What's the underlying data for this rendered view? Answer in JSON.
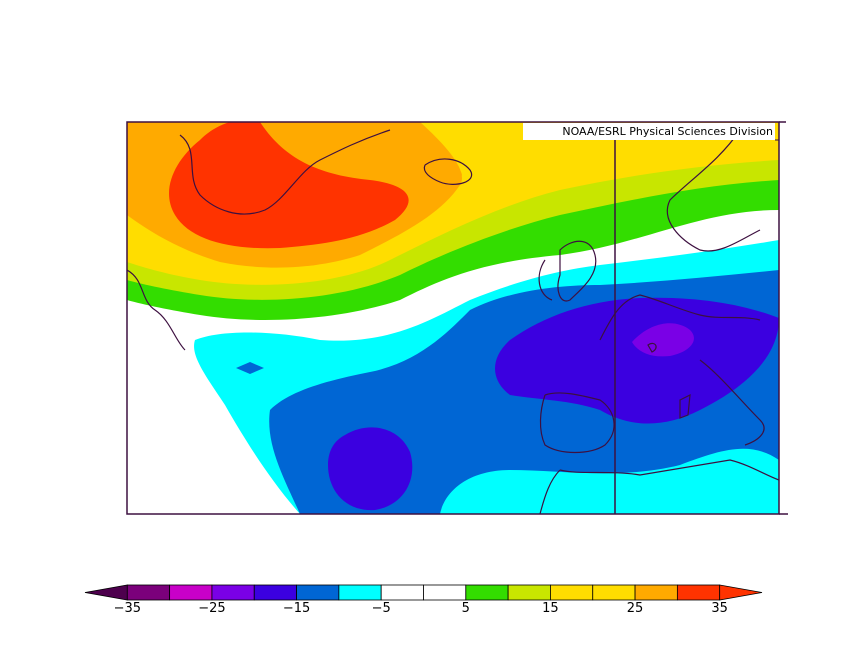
{
  "credit": "NOAA/ESRL Physical Sciences Division",
  "legend": {
    "tick_labels": [
      "−35",
      "−25",
      "−15",
      "−5",
      "5",
      "15",
      "25",
      "35"
    ],
    "tick_values": [
      -35,
      -25,
      -15,
      -5,
      5,
      15,
      25,
      35
    ],
    "bins": [
      {
        "from": -40,
        "to": -35,
        "color": "#4d004d"
      },
      {
        "from": -35,
        "to": -30,
        "color": "#7b007b"
      },
      {
        "from": -30,
        "to": -25,
        "color": "#c800c8"
      },
      {
        "from": -25,
        "to": -20,
        "color": "#7a00e6"
      },
      {
        "from": -20,
        "to": -15,
        "color": "#3b00e0"
      },
      {
        "from": -15,
        "to": -10,
        "color": "#0066d4"
      },
      {
        "from": -10,
        "to": -5,
        "color": "#00ffff"
      },
      {
        "from": -5,
        "to": 0,
        "color": "#ffffff"
      },
      {
        "from": 0,
        "to": 5,
        "color": "#ffffff"
      },
      {
        "from": 5,
        "to": 10,
        "color": "#33dd00"
      },
      {
        "from": 10,
        "to": 15,
        "color": "#c8e600"
      },
      {
        "from": 15,
        "to": 20,
        "color": "#ffdd00"
      },
      {
        "from": 20,
        "to": 25,
        "color": "#ffdd00"
      },
      {
        "from": 25,
        "to": 30,
        "color": "#ffaa00"
      },
      {
        "from": 30,
        "to": 35,
        "color": "#ff3300"
      },
      {
        "from": 35,
        "to": 40,
        "color": "#ff3300"
      }
    ]
  }
}
